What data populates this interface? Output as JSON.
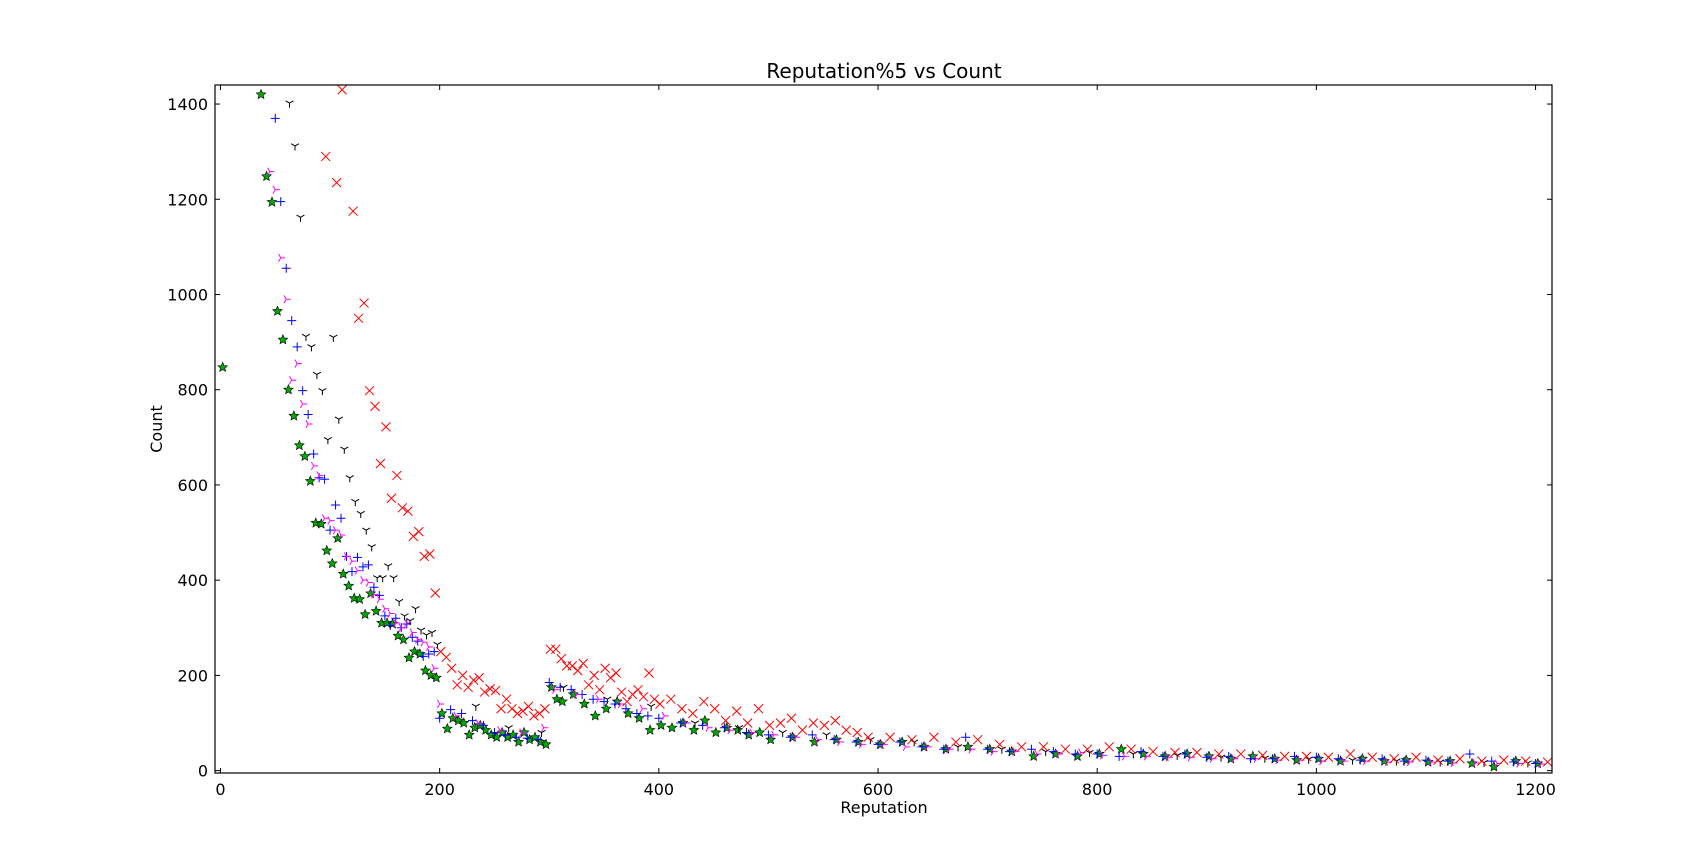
{
  "chart_data": {
    "type": "scatter",
    "title": "Reputation%5 vs Count",
    "xlabel": "Reputation",
    "ylabel": "Count",
    "xlim": [
      -5,
      1215
    ],
    "ylim": [
      -5,
      1440
    ],
    "xticks": [
      0,
      200,
      400,
      600,
      800,
      1000,
      1200
    ],
    "yticks": [
      0,
      200,
      400,
      600,
      800,
      1000,
      1200,
      1400
    ],
    "xtick_labels": [
      "0",
      "200",
      "400",
      "600",
      "800",
      "1000",
      "1200"
    ],
    "ytick_labels": [
      "0",
      "200",
      "400",
      "600",
      "800",
      "1000",
      "1200",
      "1400"
    ],
    "grid": false,
    "legend": "none",
    "series": [
      {
        "marker": "star",
        "color": "#00aa00",
        "x": [
          2,
          37,
          42,
          47,
          52,
          57,
          62,
          67,
          72,
          77,
          82,
          87,
          92,
          97,
          102,
          107,
          112,
          117,
          122,
          127,
          132,
          137,
          142,
          147,
          152,
          157,
          162,
          167,
          172,
          177,
          182,
          187,
          192,
          197,
          202,
          207,
          212,
          217,
          222,
          227,
          232,
          237,
          242,
          247,
          252,
          257,
          262,
          267,
          272,
          277,
          282,
          287,
          292,
          297,
          302,
          307,
          312,
          322,
          332,
          342,
          352,
          362,
          372,
          382,
          392,
          402,
          412,
          422,
          432,
          442,
          452,
          462,
          472,
          482,
          492,
          502,
          522,
          542,
          562,
          582,
          602,
          622,
          642,
          662,
          682,
          702,
          722,
          742,
          762,
          782,
          802,
          822,
          842,
          862,
          882,
          902,
          922,
          942,
          962,
          982,
          1002,
          1022,
          1042,
          1062,
          1082,
          1102,
          1122,
          1142,
          1162,
          1182,
          1202
        ],
        "y": [
          847,
          1420,
          1248,
          1194,
          965,
          905,
          800,
          745,
          683,
          660,
          608,
          520,
          518,
          462,
          435,
          488,
          413,
          388,
          362,
          360,
          328,
          372,
          335,
          310,
          310,
          308,
          283,
          275,
          237,
          250,
          245,
          210,
          200,
          195,
          120,
          88,
          110,
          105,
          100,
          75,
          90,
          95,
          85,
          75,
          70,
          80,
          70,
          75,
          60,
          80,
          65,
          70,
          60,
          55,
          175,
          150,
          145,
          160,
          140,
          115,
          130,
          145,
          120,
          110,
          85,
          95,
          90,
          100,
          85,
          105,
          80,
          90,
          85,
          75,
          80,
          65,
          70,
          60,
          65,
          60,
          55,
          60,
          50,
          45,
          50,
          45,
          40,
          30,
          35,
          30,
          35,
          45,
          35,
          30,
          35,
          30,
          25,
          30,
          25,
          22,
          25,
          20,
          25,
          20,
          22,
          18,
          20,
          15,
          8,
          20,
          15
        ]
      },
      {
        "marker": "plus",
        "color": "#0000ff",
        "x": [
          50,
          55,
          60,
          65,
          70,
          75,
          80,
          85,
          90,
          95,
          100,
          105,
          110,
          115,
          120,
          125,
          130,
          135,
          140,
          145,
          150,
          155,
          160,
          165,
          170,
          175,
          180,
          185,
          190,
          195,
          200,
          210,
          220,
          230,
          240,
          250,
          260,
          270,
          280,
          290,
          300,
          310,
          320,
          330,
          340,
          350,
          360,
          370,
          380,
          390,
          400,
          420,
          440,
          460,
          480,
          500,
          520,
          540,
          560,
          580,
          600,
          620,
          640,
          660,
          680,
          700,
          720,
          740,
          760,
          780,
          800,
          820,
          840,
          860,
          880,
          900,
          920,
          940,
          960,
          980,
          1000,
          1020,
          1040,
          1060,
          1080,
          1100,
          1120,
          1140,
          1160,
          1180,
          1200
        ],
        "y": [
          1370,
          1195,
          1055,
          945,
          890,
          798,
          748,
          665,
          615,
          612,
          505,
          558,
          530,
          450,
          418,
          448,
          428,
          432,
          385,
          368,
          325,
          305,
          320,
          300,
          308,
          280,
          272,
          240,
          245,
          250,
          110,
          128,
          120,
          105,
          95,
          80,
          75,
          70,
          68,
          65,
          185,
          175,
          170,
          160,
          150,
          145,
          140,
          130,
          120,
          115,
          110,
          100,
          95,
          90,
          80,
          75,
          70,
          75,
          65,
          60,
          55,
          60,
          50,
          45,
          70,
          45,
          40,
          45,
          40,
          35,
          35,
          30,
          40,
          30,
          35,
          28,
          30,
          25,
          25,
          30,
          28,
          25,
          22,
          25,
          20,
          22,
          20,
          35,
          20,
          18,
          15
        ]
      },
      {
        "marker": "tri_right",
        "color": "#ff00ff",
        "x": [
          45,
          50,
          55,
          60,
          65,
          70,
          75,
          80,
          85,
          90,
          95,
          100,
          105,
          110,
          115,
          120,
          125,
          130,
          135,
          140,
          145,
          150,
          155,
          160,
          165,
          170,
          175,
          180,
          185,
          190,
          195,
          200,
          215,
          235,
          255,
          275,
          295,
          305,
          325,
          345,
          365,
          385,
          405,
          425,
          445,
          465,
          485,
          505,
          525,
          545,
          565,
          585,
          605,
          625,
          645,
          665,
          685,
          705,
          725,
          745,
          765,
          785,
          805,
          825,
          845,
          865,
          885,
          905,
          925,
          945,
          965,
          985,
          1005,
          1025,
          1045,
          1065,
          1085,
          1105,
          1125,
          1145,
          1165,
          1185,
          1205
        ],
        "y": [
          1258,
          1220,
          1077,
          990,
          820,
          855,
          770,
          728,
          640,
          620,
          530,
          525,
          505,
          495,
          450,
          440,
          420,
          400,
          395,
          370,
          360,
          340,
          330,
          310,
          300,
          310,
          290,
          275,
          270,
          260,
          215,
          140,
          115,
          100,
          85,
          80,
          90,
          170,
          160,
          150,
          140,
          130,
          115,
          100,
          90,
          85,
          80,
          75,
          70,
          65,
          60,
          55,
          55,
          50,
          50,
          45,
          45,
          40,
          40,
          35,
          35,
          38,
          32,
          30,
          30,
          28,
          28,
          25,
          25,
          25,
          22,
          22,
          20,
          20,
          20,
          18,
          18,
          18,
          16,
          16,
          15,
          15,
          14
        ]
      },
      {
        "marker": "tri_down",
        "color": "#000000",
        "x": [
          63,
          68,
          73,
          78,
          83,
          88,
          93,
          98,
          103,
          108,
          113,
          118,
          123,
          128,
          133,
          138,
          143,
          148,
          153,
          158,
          163,
          168,
          173,
          178,
          183,
          188,
          193,
          198,
          233,
          263,
          293,
          313,
          353,
          393,
          433,
          473,
          513,
          553,
          593,
          633,
          673,
          713,
          753,
          793,
          833,
          873,
          913,
          953,
          993,
          1033,
          1073,
          1113,
          1153,
          1193
        ],
        "y": [
          1402,
          1312,
          1162,
          912,
          890,
          832,
          798,
          695,
          910,
          738,
          675,
          615,
          565,
          540,
          505,
          470,
          405,
          405,
          430,
          405,
          355,
          325,
          315,
          340,
          295,
          285,
          290,
          265,
          135,
          90,
          80,
          175,
          150,
          135,
          100,
          90,
          80,
          75,
          65,
          60,
          50,
          45,
          40,
          38,
          35,
          32,
          28,
          26,
          24,
          22,
          20,
          18,
          17,
          16
        ]
      },
      {
        "marker": "x",
        "color": "#ff0000",
        "x": [
          96,
          106,
          111,
          121,
          126,
          131,
          136,
          141,
          146,
          151,
          156,
          161,
          166,
          171,
          176,
          181,
          186,
          191,
          196,
          201,
          206,
          211,
          216,
          221,
          226,
          231,
          236,
          241,
          246,
          251,
          256,
          261,
          266,
          271,
          276,
          281,
          286,
          291,
          296,
          301,
          306,
          311,
          316,
          321,
          326,
          331,
          336,
          341,
          346,
          351,
          356,
          361,
          366,
          371,
          376,
          381,
          386,
          391,
          396,
          401,
          411,
          421,
          431,
          441,
          451,
          461,
          471,
          481,
          491,
          501,
          511,
          521,
          531,
          541,
          551,
          561,
          571,
          581,
          591,
          611,
          631,
          651,
          671,
          691,
          711,
          731,
          751,
          771,
          791,
          811,
          831,
          851,
          871,
          891,
          911,
          931,
          951,
          971,
          991,
          1011,
          1031,
          1051,
          1071,
          1091,
          1111,
          1131,
          1151,
          1171,
          1191,
          1211
        ],
        "y": [
          1290,
          1235,
          1430,
          1175,
          950,
          982,
          798,
          765,
          645,
          722,
          572,
          620,
          552,
          545,
          492,
          502,
          450,
          455,
          373,
          250,
          238,
          215,
          180,
          200,
          175,
          190,
          195,
          165,
          172,
          168,
          130,
          150,
          130,
          120,
          125,
          135,
          115,
          120,
          130,
          255,
          255,
          235,
          220,
          220,
          210,
          225,
          180,
          200,
          170,
          215,
          195,
          205,
          165,
          145,
          160,
          170,
          155,
          205,
          150,
          140,
          150,
          130,
          120,
          145,
          130,
          105,
          125,
          100,
          130,
          95,
          100,
          110,
          85,
          100,
          95,
          105,
          85,
          80,
          70,
          70,
          65,
          70,
          60,
          65,
          55,
          50,
          50,
          45,
          45,
          50,
          45,
          40,
          38,
          38,
          35,
          35,
          32,
          30,
          30,
          28,
          35,
          28,
          25,
          28,
          22,
          25,
          20,
          22,
          20,
          18
        ]
      }
    ]
  }
}
